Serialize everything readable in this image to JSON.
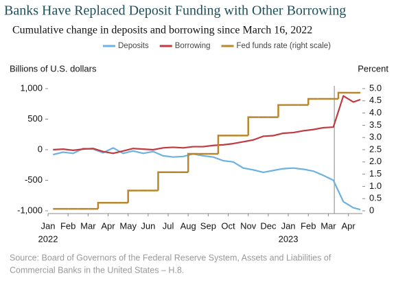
{
  "chart_data": {
    "type": "line",
    "title": "Banks Have Replaced Deposit Funding with Other Borrowing",
    "subtitle": "Cumulative change in deposits and borrowing since March 16, 2022",
    "y_label": "Billions of U.S. dollars",
    "y2_label": "Percent",
    "source": [
      "Source: Board of Governors of the Federal Reserve System, Assets and Liabilities of",
      "Commercial Banks in the United States – H.8."
    ],
    "x": [
      0.25,
      0.75,
      1.25,
      1.75,
      2.25,
      2.75,
      3.25,
      3.75,
      4.25,
      4.75,
      5.25,
      5.75,
      6.25,
      6.75,
      7.25,
      7.75,
      8.25,
      8.75,
      9.25,
      9.75,
      10.25,
      10.75,
      11.25,
      11.75,
      12.25,
      12.75,
      13.25,
      13.75,
      14.25,
      14.75,
      15.25,
      15.6
    ],
    "xlim": [
      0,
      15.7
    ],
    "xticks": [
      {
        "value": 0,
        "label": "Jan"
      },
      {
        "value": 1,
        "label": "Feb"
      },
      {
        "value": 2,
        "label": "Mar"
      },
      {
        "value": 3,
        "label": "Apr"
      },
      {
        "value": 4,
        "label": "May"
      },
      {
        "value": 5,
        "label": "Jun"
      },
      {
        "value": 6,
        "label": "Jul"
      },
      {
        "value": 7,
        "label": "Aug"
      },
      {
        "value": 8,
        "label": "Sep"
      },
      {
        "value": 9,
        "label": "Oct"
      },
      {
        "value": 10,
        "label": "Nov"
      },
      {
        "value": 11,
        "label": "Dec"
      },
      {
        "value": 12,
        "label": "Jan"
      },
      {
        "value": 13,
        "label": "Feb"
      },
      {
        "value": 14,
        "label": "Mar"
      },
      {
        "value": 15,
        "label": "Apr"
      }
    ],
    "x_year_labels": [
      {
        "value": 0,
        "label": "2022"
      },
      {
        "value": 12,
        "label": "2023"
      }
    ],
    "ylim": [
      -1000,
      1000
    ],
    "yticks": [
      {
        "value": -1000,
        "label": "-1,000"
      },
      -500,
      0,
      500,
      {
        "value": 1000,
        "label": "1,000"
      }
    ],
    "y2lim": [
      0,
      5
    ],
    "y2ticks": [
      0,
      0.5,
      {
        "value": 1,
        "label": "1.0"
      },
      1.5,
      {
        "value": 2,
        "label": "2.0"
      },
      2.5,
      {
        "value": 3,
        "label": "3.0"
      },
      3.5,
      {
        "value": 4,
        "label": "4.0"
      },
      4.5,
      {
        "value": 5,
        "label": "5.0"
      }
    ],
    "reference_x": 14.3,
    "grid": false,
    "series": [
      {
        "name": "Deposits",
        "color": "#6cb2e0",
        "values": [
          -80,
          -40,
          -60,
          20,
          10,
          -50,
          30,
          -60,
          -20,
          -60,
          -30,
          -100,
          -120,
          -110,
          -70,
          -100,
          -120,
          -180,
          -200,
          -300,
          -330,
          -370,
          -340,
          -310,
          -300,
          -320,
          -350,
          -420,
          -500,
          -850,
          -950,
          -980
        ]
      },
      {
        "name": "Borrowing",
        "color": "#c0393f",
        "values": [
          0,
          10,
          -10,
          10,
          20,
          -30,
          -60,
          -20,
          20,
          10,
          0,
          30,
          40,
          30,
          50,
          50,
          70,
          80,
          100,
          130,
          160,
          220,
          230,
          270,
          280,
          310,
          330,
          360,
          370,
          880,
          780,
          820
        ]
      },
      {
        "name": "Fed funds rate (right scale)",
        "color": "#b8862b",
        "axis": "y2",
        "step": true,
        "values": [
          0.08,
          0.08,
          0.08,
          0.08,
          0.08,
          0.33,
          0.33,
          0.33,
          0.83,
          0.83,
          0.83,
          1.58,
          1.58,
          1.58,
          2.33,
          2.33,
          2.33,
          3.08,
          3.08,
          3.08,
          3.83,
          3.83,
          3.83,
          4.33,
          4.33,
          4.33,
          4.58,
          4.58,
          4.58,
          4.83,
          4.83,
          4.83
        ]
      }
    ]
  }
}
